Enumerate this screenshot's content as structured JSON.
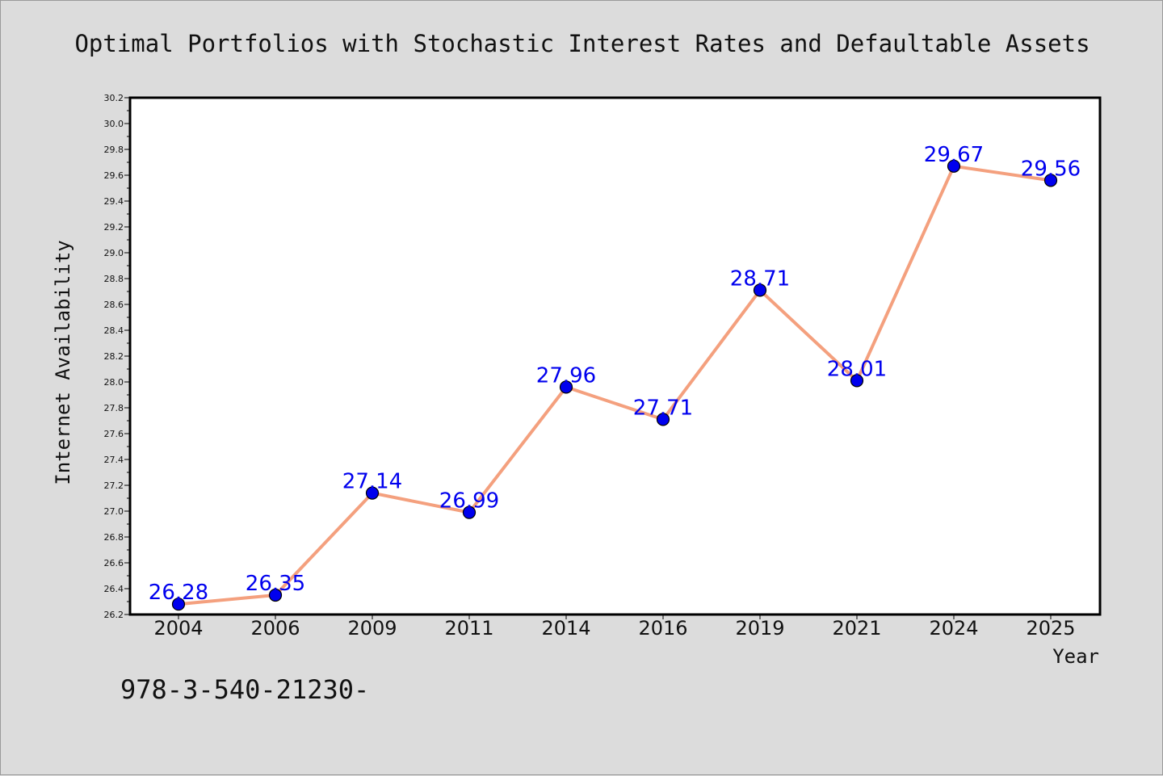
{
  "chart_data": {
    "type": "line",
    "title": "Optimal Portfolios with Stochastic Interest Rates and Defaultable Assets",
    "xlabel": "Year",
    "ylabel": "Internet Availability",
    "categories": [
      "2004",
      "2006",
      "2009",
      "2011",
      "2014",
      "2016",
      "2019",
      "2021",
      "2024",
      "2025"
    ],
    "series": [
      {
        "values": [
          26.28,
          26.35,
          27.14,
          26.99,
          27.96,
          27.71,
          28.71,
          28.01,
          29.67,
          29.56
        ],
        "labels": [
          "26.28",
          "26.35",
          "27.14",
          "26.99",
          "27.96",
          "27.71",
          "28.71",
          "28.01",
          "29.67",
          "29.56"
        ],
        "line_color": "#f4a07e",
        "marker_color": "#0000ee",
        "label_color": "#0000ee"
      }
    ],
    "ylim": [
      26.2,
      30.2
    ],
    "yticks": [
      "26.2",
      "26.4",
      "26.6",
      "26.8",
      "27.0",
      "27.2",
      "27.4",
      "27.6",
      "27.8",
      "28.0",
      "28.2",
      "28.4",
      "28.6",
      "28.8",
      "29.0",
      "29.2",
      "29.4",
      "29.6",
      "29.8",
      "30.0",
      "30.2"
    ],
    "grid": false,
    "legend": "none"
  },
  "footnote": "978-3-540-21230-",
  "colors": {
    "background": "#dcdcdc",
    "plot_background": "#ffffff",
    "axis": "#000000"
  }
}
